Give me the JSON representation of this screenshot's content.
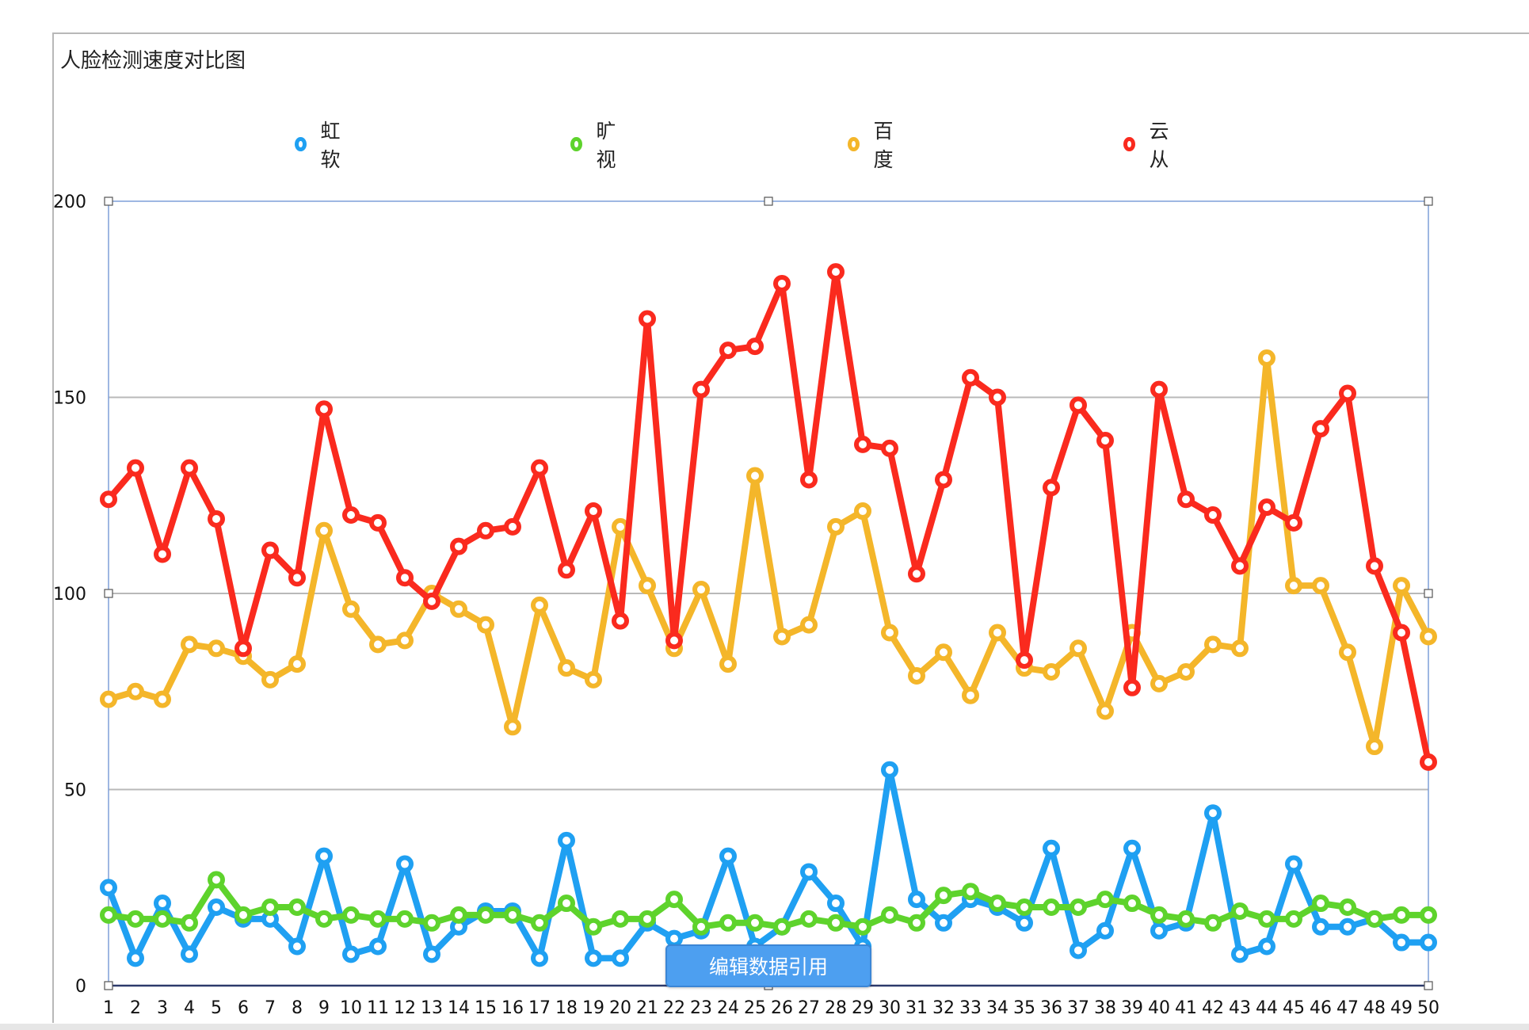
{
  "edit_button_label": "编辑数据引用",
  "chart_data": {
    "type": "line",
    "title": "人脸检测速度对比图",
    "xlabel": "",
    "ylabel": "",
    "ylim": [
      0,
      200
    ],
    "yticks": [
      0,
      50,
      100,
      150,
      200
    ],
    "grid": true,
    "legend_position": "top",
    "x": [
      1,
      2,
      3,
      4,
      5,
      6,
      7,
      8,
      9,
      10,
      11,
      12,
      13,
      14,
      15,
      16,
      17,
      18,
      19,
      20,
      21,
      22,
      23,
      24,
      25,
      26,
      27,
      28,
      29,
      30,
      31,
      32,
      33,
      34,
      35,
      36,
      37,
      38,
      39,
      40,
      41,
      42,
      43,
      44,
      45,
      46,
      47,
      48,
      49,
      50
    ],
    "series": [
      {
        "name": "虹软",
        "color": "#1fa0f2",
        "values": [
          25,
          7,
          21,
          8,
          20,
          17,
          17,
          10,
          33,
          8,
          10,
          31,
          8,
          15,
          19,
          19,
          7,
          37,
          7,
          7,
          16,
          12,
          14,
          33,
          10,
          15,
          29,
          21,
          10,
          55,
          22,
          16,
          22,
          20,
          16,
          35,
          9,
          14,
          35,
          14,
          16,
          44,
          8,
          10,
          31,
          15,
          15,
          17,
          11,
          11
        ]
      },
      {
        "name": "旷视",
        "color": "#5ed32c",
        "values": [
          18,
          17,
          17,
          16,
          27,
          18,
          20,
          20,
          17,
          18,
          17,
          17,
          16,
          18,
          18,
          18,
          16,
          21,
          15,
          17,
          17,
          22,
          15,
          16,
          16,
          15,
          17,
          16,
          15,
          18,
          16,
          23,
          24,
          21,
          20,
          20,
          20,
          22,
          21,
          18,
          17,
          16,
          19,
          17,
          17,
          21,
          20,
          17,
          18,
          18
        ]
      },
      {
        "name": "百度",
        "color": "#f4b62a",
        "values": [
          73,
          75,
          73,
          87,
          86,
          84,
          78,
          82,
          116,
          96,
          87,
          88,
          100,
          96,
          92,
          66,
          97,
          81,
          78,
          117,
          102,
          86,
          101,
          82,
          130,
          89,
          92,
          117,
          121,
          90,
          79,
          85,
          74,
          90,
          81,
          80,
          86,
          70,
          90,
          77,
          80,
          87,
          86,
          160,
          102,
          102,
          85,
          61,
          102,
          89
        ]
      },
      {
        "name": "云从",
        "color": "#fa2a1e",
        "values": [
          124,
          132,
          110,
          132,
          119,
          86,
          111,
          104,
          147,
          120,
          118,
          104,
          98,
          112,
          116,
          117,
          132,
          106,
          121,
          93,
          170,
          88,
          152,
          162,
          163,
          179,
          129,
          182,
          138,
          137,
          105,
          129,
          155,
          150,
          83,
          127,
          148,
          139,
          76,
          152,
          124,
          120,
          107,
          122,
          118,
          142,
          151,
          107,
          90,
          57
        ]
      }
    ]
  }
}
